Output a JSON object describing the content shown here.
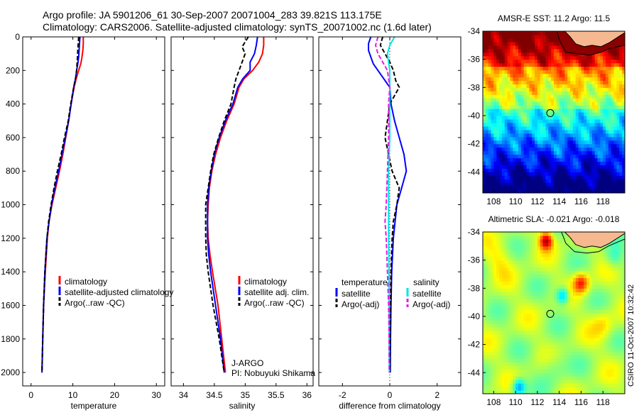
{
  "header": {
    "line1": "Argo profile: JA 5901206_61 30-Sep-2007 20071004_283 39.821S 113.175E",
    "line2": "Climatology: CARS2006. Satellite-adjusted climatology: synTS_20071002.nc (1.6d later)"
  },
  "side_stamp": "CSIRO 11-Oct-2007 10:32:42",
  "colors": {
    "clim": "#ff0000",
    "sat": "#0000ff",
    "argo": "#000000",
    "salsat": "#00e5e5",
    "salargo": "#e619e6"
  },
  "chart_data": [
    {
      "id": "temperature",
      "type": "line",
      "xlabel": "temperature",
      "ylabel": "",
      "xlim": [
        -2,
        32
      ],
      "ylim": [
        2080,
        0
      ],
      "xticks": [
        0,
        10,
        20,
        30
      ],
      "yticks": [
        0,
        200,
        400,
        600,
        800,
        1000,
        1200,
        1400,
        1600,
        1800,
        2000
      ],
      "legend": [
        {
          "label": "climatology",
          "color": "#ff0000"
        },
        {
          "label": "satellite-adjusted climatology",
          "color": "#0000ff"
        },
        {
          "label": "Argo(..raw -QC)",
          "color": "#000000"
        }
      ],
      "series": [
        {
          "name": "climatology",
          "color": "#ff0000",
          "dash": "",
          "depth": [
            0,
            40,
            80,
            120,
            160,
            200,
            240,
            300,
            400,
            500,
            600,
            700,
            800,
            900,
            1000,
            1100,
            1200,
            1400,
            1600,
            1800,
            2000
          ],
          "values": [
            12.5,
            12.5,
            12.4,
            12.2,
            11.9,
            11.4,
            10.9,
            10.3,
            9.6,
            9.0,
            8.3,
            7.6,
            6.8,
            5.9,
            5.0,
            4.3,
            3.9,
            3.4,
            3.0,
            2.8,
            2.6
          ]
        },
        {
          "name": "satellite-adjusted climatology",
          "color": "#0000ff",
          "dash": "",
          "depth": [
            0,
            40,
            80,
            120,
            160,
            200,
            240,
            300,
            400,
            500,
            600,
            700,
            800,
            900,
            1000,
            1100,
            1200,
            1400,
            1600,
            1800,
            2000
          ],
          "values": [
            11.7,
            11.6,
            11.5,
            11.4,
            11.2,
            10.9,
            10.7,
            10.2,
            9.6,
            9.0,
            8.2,
            7.4,
            6.6,
            5.7,
            4.9,
            4.3,
            3.8,
            3.3,
            3.0,
            2.8,
            2.6
          ]
        },
        {
          "name": "Argo(..raw -QC)",
          "color": "#000000",
          "dash": "6,3",
          "depth": [
            0,
            40,
            80,
            120,
            160,
            200,
            240,
            300,
            400,
            500,
            600,
            700,
            800,
            900,
            1000,
            1100,
            1200,
            1400,
            1600,
            1800,
            2000
          ],
          "values": [
            11.4,
            11.3,
            11.2,
            11.1,
            11.0,
            10.9,
            10.7,
            10.2,
            9.5,
            8.9,
            8.0,
            7.2,
            6.3,
            5.5,
            4.8,
            4.2,
            3.8,
            3.3,
            3.0,
            2.8,
            2.6
          ]
        }
      ]
    },
    {
      "id": "salinity",
      "type": "line",
      "xlabel": "salinity",
      "ylabel": "",
      "xlim": [
        33.8,
        36.1
      ],
      "ylim": [
        2080,
        0
      ],
      "xticks": [
        34,
        34.5,
        35,
        35.5,
        36
      ],
      "xticklabels": [
        "34",
        "34.5",
        "35",
        "35.5",
        "36"
      ],
      "yticks": [
        0,
        200,
        400,
        600,
        800,
        1000,
        1200,
        1400,
        1600,
        1800,
        2000
      ],
      "legend": [
        {
          "label": "climatology",
          "color": "#ff0000"
        },
        {
          "label": "satellite adj. clim.",
          "color": "#0000ff"
        },
        {
          "label": "Argo(..raw -QC)",
          "color": "#000000"
        }
      ],
      "annotation": [
        "J-ARGO",
        "PI: Nobuyuki Shikama"
      ],
      "series": [
        {
          "name": "climatology",
          "color": "#ff0000",
          "dash": "",
          "depth": [
            0,
            50,
            100,
            150,
            200,
            250,
            300,
            400,
            500,
            600,
            700,
            800,
            900,
            1000,
            1100,
            1200,
            1300,
            1400,
            1600,
            1800,
            2000
          ],
          "values": [
            35.3,
            35.3,
            35.28,
            35.22,
            35.12,
            34.98,
            34.9,
            34.82,
            34.7,
            34.6,
            34.52,
            34.46,
            34.42,
            34.4,
            34.39,
            34.4,
            34.43,
            34.47,
            34.56,
            34.62,
            34.68
          ]
        },
        {
          "name": "satellite adj. clim.",
          "color": "#0000ff",
          "dash": "",
          "depth": [
            0,
            50,
            100,
            150,
            200,
            250,
            300,
            400,
            500,
            600,
            700,
            800,
            900,
            1000,
            1100,
            1200,
            1300,
            1400,
            1600,
            1800,
            2000
          ],
          "values": [
            35.2,
            35.18,
            35.15,
            35.08,
            35.08,
            34.96,
            34.88,
            34.8,
            34.68,
            34.58,
            34.5,
            34.45,
            34.41,
            34.39,
            34.39,
            34.39,
            34.41,
            34.44,
            34.52,
            34.6,
            34.66
          ]
        },
        {
          "name": "Argo(..raw -QC)",
          "color": "#000000",
          "dash": "6,3",
          "depth": [
            0,
            30,
            60,
            100,
            150,
            200,
            250,
            300,
            400,
            500,
            600,
            700,
            800,
            900,
            1000,
            1100,
            1200,
            1300,
            1400,
            1600,
            1800,
            2000
          ],
          "values": [
            35.05,
            35.0,
            34.95,
            35.0,
            34.95,
            34.9,
            34.85,
            34.82,
            34.77,
            34.66,
            34.57,
            34.49,
            34.44,
            34.4,
            34.36,
            34.36,
            34.36,
            34.37,
            34.4,
            34.48,
            34.58,
            34.66
          ]
        }
      ]
    },
    {
      "id": "difference",
      "type": "line",
      "xlabel": "difference from climatology",
      "ylabel": "",
      "xlim": [
        -3.0,
        3.0
      ],
      "ylim": [
        2080,
        0
      ],
      "xticks": [
        -2,
        0,
        2
      ],
      "yticks": [
        0,
        200,
        400,
        600,
        800,
        1000,
        1200,
        1400,
        1600,
        1800,
        2000
      ],
      "legend_left_title": "temperature",
      "legend_right_title": "salinity",
      "legend_left": [
        {
          "label": "satellite",
          "color": "#0000ff"
        },
        {
          "label": "Argo(-adj)",
          "color": "#000000"
        }
      ],
      "legend_right": [
        {
          "label": "satellite",
          "color": "#00e5e5"
        },
        {
          "label": "Argo(-adj)",
          "color": "#e619e6"
        }
      ],
      "series": [
        {
          "name": "temperature satellite",
          "color": "#0000ff",
          "dash": "",
          "depth": [
            0,
            40,
            80,
            120,
            160,
            200,
            300,
            400,
            500,
            600,
            700,
            800,
            900,
            1000,
            1200,
            1400,
            1600,
            1800,
            2000
          ],
          "values": [
            -0.8,
            -0.9,
            -0.9,
            -0.8,
            -0.7,
            -0.5,
            0.0,
            0.05,
            0.2,
            0.4,
            0.6,
            0.7,
            0.5,
            0.3,
            0.15,
            0.08,
            0.05,
            0.03,
            0.02
          ]
        },
        {
          "name": "temperature Argo(-adj)",
          "color": "#000000",
          "dash": "6,3",
          "depth": [
            0,
            50,
            100,
            150,
            200,
            260,
            300,
            350,
            400,
            500,
            600,
            700,
            800,
            900,
            1000,
            1100,
            1200,
            1400,
            1600,
            1800,
            2000
          ],
          "values": [
            -0.3,
            -0.4,
            -0.2,
            0.0,
            0.15,
            0.25,
            0.4,
            0.2,
            0.0,
            -0.1,
            -0.2,
            -0.05,
            0.1,
            0.4,
            0.3,
            0.15,
            0.1,
            0.05,
            0.03,
            0.02,
            0.01
          ]
        },
        {
          "name": "salinity satellite",
          "color": "#00e5e5",
          "dash": "",
          "depth": [
            0,
            50,
            100,
            150,
            200,
            300,
            400,
            600,
            800,
            1000,
            1200,
            1400,
            1600,
            1800,
            2000
          ],
          "values": [
            0.2,
            0.0,
            -0.1,
            -0.05,
            0.0,
            0.0,
            0.0,
            0.0,
            -0.05,
            -0.05,
            -0.05,
            -0.03,
            -0.03,
            -0.03,
            -0.02
          ]
        },
        {
          "name": "salinity Argo(-adj)",
          "color": "#e619e6",
          "dash": "6,3",
          "depth": [
            0,
            50,
            100,
            150,
            200,
            250,
            300,
            400,
            600,
            800,
            1000,
            1100,
            1200,
            1400,
            1600,
            1800,
            2000
          ],
          "values": [
            -0.5,
            -0.6,
            -0.5,
            -0.3,
            -0.1,
            -0.05,
            0.0,
            -0.05,
            -0.05,
            -0.1,
            -0.15,
            -0.2,
            -0.15,
            -0.1,
            -0.05,
            -0.03,
            -0.02
          ]
        }
      ]
    },
    {
      "id": "sst_map",
      "type": "heatmap",
      "title": "AMSR-E SST: 11.2  Argo: 11.5",
      "xlim": [
        107,
        120
      ],
      "ylim": [
        -45.5,
        -34
      ],
      "xticks": [
        108,
        110,
        112,
        114,
        116,
        118
      ],
      "yticks": [
        -34,
        -36,
        -38,
        -40,
        -42,
        -44
      ],
      "marker": {
        "lon": 113.175,
        "lat": -39.821
      },
      "land_color": "#f6b98f"
    },
    {
      "id": "sla_map",
      "type": "heatmap",
      "title": "Altimetric SLA: -0.021  Argo: -0.018",
      "xlim": [
        107,
        120
      ],
      "ylim": [
        -45.5,
        -34
      ],
      "xticks": [
        108,
        110,
        112,
        114,
        116,
        118
      ],
      "yticks": [
        -34,
        -36,
        -38,
        -40,
        -42,
        -44
      ],
      "marker": {
        "lon": 113.175,
        "lat": -39.821
      },
      "land_color": "#f6b98f"
    }
  ]
}
